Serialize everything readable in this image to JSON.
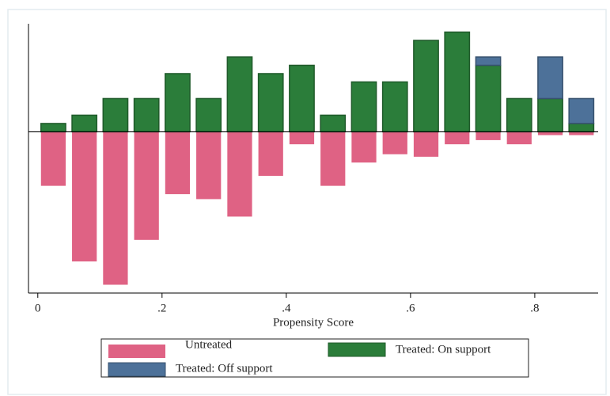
{
  "chart_data": {
    "type": "histogram",
    "x_label": "Propensity Score",
    "bins": [
      0,
      0.05,
      0.1,
      0.15,
      0.2,
      0.25,
      0.3,
      0.35,
      0.4,
      0.45,
      0.5,
      0.55,
      0.6,
      0.65,
      0.7,
      0.75,
      0.8,
      0.85,
      0.9
    ],
    "stacked": true,
    "series": [
      {
        "name": "Untreated",
        "color": "#d9466f",
        "values": [
          -6.5,
          -15.6,
          -18.4,
          -13,
          -7.5,
          -8.1,
          -10.2,
          -5.3,
          -1.5,
          -6.5,
          -3.7,
          -2.7,
          -3,
          -1.5,
          -1,
          -1.5,
          -0.4,
          -0.4
        ]
      },
      {
        "name": "Treated: On support",
        "color": "#2b7d3a",
        "values": [
          1,
          2,
          4,
          4,
          7,
          4,
          9,
          7,
          8,
          2,
          6,
          6,
          11,
          12,
          8,
          4,
          4,
          1
        ]
      },
      {
        "name": "Treated: Off support",
        "color": "#4d7199",
        "values": [
          0,
          0,
          0,
          0,
          0,
          0,
          0,
          0,
          0,
          0,
          0,
          0,
          0,
          0,
          1,
          0,
          5,
          3
        ]
      }
    ],
    "xlim": [
      -0.015,
      0.902
    ],
    "ylim": [
      -19.4,
      13
    ],
    "xticks": [
      0,
      {
        "value": 0.2,
        "label": ".2"
      },
      {
        "value": 0.4,
        "label": ".4"
      },
      {
        "value": 0.6,
        "label": ".6"
      },
      {
        "value": 0.8,
        "label": ".8"
      }
    ],
    "legend": "bottom"
  }
}
